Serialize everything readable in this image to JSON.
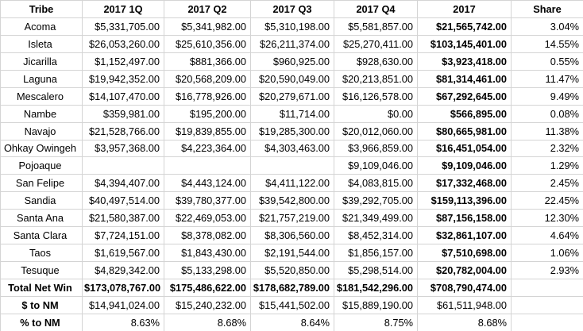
{
  "table": {
    "columns": [
      "Tribe",
      "2017 1Q",
      "2017 Q2",
      "2017 Q3",
      "2017 Q4",
      "2017",
      "Share"
    ],
    "rows": [
      {
        "type": "tribe",
        "cells": [
          "Acoma",
          "$5,331,705.00",
          "$5,341,982.00",
          "$5,310,198.00",
          "$5,581,857.00",
          "$21,565,742.00",
          "3.04%"
        ]
      },
      {
        "type": "tribe",
        "cells": [
          "Isleta",
          "$26,053,260.00",
          "$25,610,356.00",
          "$26,211,374.00",
          "$25,270,411.00",
          "$103,145,401.00",
          "14.55%"
        ]
      },
      {
        "type": "tribe",
        "cells": [
          "Jicarilla",
          "$1,152,497.00",
          "$881,366.00",
          "$960,925.00",
          "$928,630.00",
          "$3,923,418.00",
          "0.55%"
        ]
      },
      {
        "type": "tribe",
        "cells": [
          "Laguna",
          "$19,942,352.00",
          "$20,568,209.00",
          "$20,590,049.00",
          "$20,213,851.00",
          "$81,314,461.00",
          "11.47%"
        ]
      },
      {
        "type": "tribe",
        "cells": [
          "Mescalero",
          "$14,107,470.00",
          "$16,778,926.00",
          "$20,279,671.00",
          "$16,126,578.00",
          "$67,292,645.00",
          "9.49%"
        ]
      },
      {
        "type": "tribe",
        "cells": [
          "Nambe",
          "$359,981.00",
          "$195,200.00",
          "$11,714.00",
          "$0.00",
          "$566,895.00",
          "0.08%"
        ]
      },
      {
        "type": "tribe",
        "cells": [
          "Navajo",
          "$21,528,766.00",
          "$19,839,855.00",
          "$19,285,300.00",
          "$20,012,060.00",
          "$80,665,981.00",
          "11.38%"
        ]
      },
      {
        "type": "tribe",
        "cells": [
          "Ohkay Owingeh",
          "$3,957,368.00",
          "$4,223,364.00",
          "$4,303,463.00",
          "$3,966,859.00",
          "$16,451,054.00",
          "2.32%"
        ]
      },
      {
        "type": "tribe",
        "cells": [
          "Pojoaque",
          "",
          "",
          "",
          "$9,109,046.00",
          "$9,109,046.00",
          "1.29%"
        ]
      },
      {
        "type": "tribe",
        "cells": [
          "San Felipe",
          "$4,394,407.00",
          "$4,443,124.00",
          "$4,411,122.00",
          "$4,083,815.00",
          "$17,332,468.00",
          "2.45%"
        ]
      },
      {
        "type": "tribe",
        "cells": [
          "Sandia",
          "$40,497,514.00",
          "$39,780,377.00",
          "$39,542,800.00",
          "$39,292,705.00",
          "$159,113,396.00",
          "22.45%"
        ]
      },
      {
        "type": "tribe",
        "cells": [
          "Santa Ana",
          "$21,580,387.00",
          "$22,469,053.00",
          "$21,757,219.00",
          "$21,349,499.00",
          "$87,156,158.00",
          "12.30%"
        ]
      },
      {
        "type": "tribe",
        "cells": [
          "Santa Clara",
          "$7,724,151.00",
          "$8,378,082.00",
          "$8,306,560.00",
          "$8,452,314.00",
          "$32,861,107.00",
          "4.64%"
        ]
      },
      {
        "type": "tribe",
        "cells": [
          "Taos",
          "$1,619,567.00",
          "$1,843,430.00",
          "$2,191,544.00",
          "$1,856,157.00",
          "$7,510,698.00",
          "1.06%"
        ]
      },
      {
        "type": "tribe",
        "cells": [
          "Tesuque",
          "$4,829,342.00",
          "$5,133,298.00",
          "$5,520,850.00",
          "$5,298,514.00",
          "$20,782,004.00",
          "2.93%"
        ]
      },
      {
        "type": "total",
        "cells": [
          "Total Net Win",
          "$173,078,767.00",
          "$175,486,622.00",
          "$178,682,789.00",
          "$181,542,296.00",
          "$708,790,474.00",
          ""
        ]
      },
      {
        "type": "dollars-to-nm",
        "cells": [
          "$ to NM",
          "$14,941,024.00",
          "$15,240,232.00",
          "$15,441,502.00",
          "$15,889,190.00",
          "$61,511,948.00",
          ""
        ]
      },
      {
        "type": "percent-to-nm",
        "cells": [
          "% to NM",
          "8.63%",
          "8.68%",
          "8.64%",
          "8.75%",
          "8.68%",
          ""
        ]
      }
    ]
  },
  "colors": {
    "gridline": "#d4d4d4",
    "text": "#000000",
    "background": "#ffffff"
  }
}
